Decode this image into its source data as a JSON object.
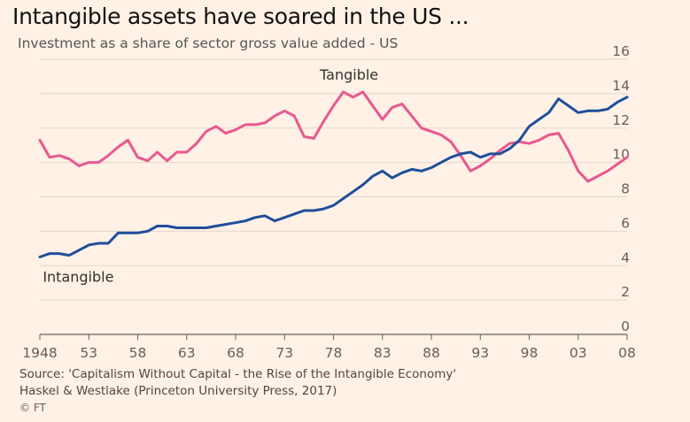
{
  "chart_data": {
    "type": "line",
    "title": "Intangible assets have soared in the US ...",
    "subtitle": "Investment as a share of sector gross value added - US",
    "xlabel": "",
    "ylabel": "",
    "xlim": [
      1948,
      2008
    ],
    "ylim": [
      0,
      16
    ],
    "x_ticks": [
      1948,
      1953,
      1958,
      1963,
      1968,
      1973,
      1978,
      1983,
      1988,
      1993,
      1998,
      2003,
      2008
    ],
    "x_tick_labels": [
      "1948",
      "53",
      "58",
      "63",
      "68",
      "73",
      "78",
      "83",
      "88",
      "93",
      "98",
      "03",
      "08"
    ],
    "y_ticks": [
      0,
      2,
      4,
      6,
      8,
      10,
      12,
      14,
      16
    ],
    "y_tick_labels": [
      "0",
      "2",
      "4",
      "6",
      "8",
      "10",
      "12",
      "14",
      "16"
    ],
    "grid": true,
    "series": [
      {
        "name": "Tangible",
        "color": "#e9588f",
        "x": [
          1948,
          1949,
          1950,
          1951,
          1952,
          1953,
          1954,
          1955,
          1956,
          1957,
          1958,
          1959,
          1960,
          1961,
          1962,
          1963,
          1964,
          1965,
          1966,
          1967,
          1968,
          1969,
          1970,
          1971,
          1972,
          1973,
          1974,
          1975,
          1976,
          1977,
          1978,
          1979,
          1980,
          1981,
          1982,
          1983,
          1984,
          1985,
          1986,
          1987,
          1988,
          1989,
          1990,
          1991,
          1992,
          1993,
          1994,
          1995,
          1996,
          1997,
          1998,
          1999,
          2000,
          2001,
          2002,
          2003,
          2004,
          2005,
          2006,
          2007,
          2008
        ],
        "values": [
          11.3,
          10.3,
          10.4,
          10.2,
          9.8,
          10.0,
          10.0,
          10.4,
          10.9,
          11.3,
          10.3,
          10.1,
          10.6,
          10.1,
          10.6,
          10.6,
          11.1,
          11.8,
          12.1,
          11.7,
          11.9,
          12.2,
          12.2,
          12.3,
          12.7,
          13.0,
          12.7,
          11.5,
          11.4,
          12.4,
          13.3,
          14.1,
          13.8,
          14.1,
          13.3,
          12.5,
          13.2,
          13.4,
          12.7,
          12.0,
          11.8,
          11.6,
          11.2,
          10.4,
          9.5,
          9.8,
          10.2,
          10.7,
          11.1,
          11.2,
          11.1,
          11.3,
          11.6,
          11.7,
          10.7,
          9.5,
          8.9,
          9.2,
          9.5,
          9.9,
          10.3
        ]
      },
      {
        "name": "Intangible",
        "color": "#1f4f9b",
        "x": [
          1948,
          1949,
          1950,
          1951,
          1952,
          1953,
          1954,
          1955,
          1956,
          1957,
          1958,
          1959,
          1960,
          1961,
          1962,
          1963,
          1964,
          1965,
          1966,
          1967,
          1968,
          1969,
          1970,
          1971,
          1972,
          1973,
          1974,
          1975,
          1976,
          1977,
          1978,
          1979,
          1980,
          1981,
          1982,
          1983,
          1984,
          1985,
          1986,
          1987,
          1988,
          1989,
          1990,
          1991,
          1992,
          1993,
          1994,
          1995,
          1996,
          1997,
          1998,
          1999,
          2000,
          2001,
          2002,
          2003,
          2004,
          2005,
          2006,
          2007,
          2008
        ],
        "values": [
          4.5,
          4.7,
          4.7,
          4.6,
          4.9,
          5.2,
          5.3,
          5.3,
          5.9,
          5.9,
          5.9,
          6.0,
          6.3,
          6.3,
          6.2,
          6.2,
          6.2,
          6.2,
          6.3,
          6.4,
          6.5,
          6.6,
          6.8,
          6.9,
          6.6,
          6.8,
          7.0,
          7.2,
          7.2,
          7.3,
          7.5,
          7.9,
          8.3,
          8.7,
          9.2,
          9.5,
          9.1,
          9.4,
          9.6,
          9.5,
          9.7,
          10.0,
          10.3,
          10.5,
          10.6,
          10.3,
          10.5,
          10.5,
          10.8,
          11.3,
          12.1,
          12.5,
          12.9,
          13.7,
          13.3,
          12.9,
          13.0,
          13.0,
          13.1,
          13.5,
          13.8
        ]
      }
    ]
  },
  "footer": {
    "source_line1": "Source: 'Capitalism Without Capital - the Rise of the Intangible Economy'",
    "source_line2": "Haskel & Westlake (Princeton University Press, 2017)",
    "credit": "© FT"
  }
}
